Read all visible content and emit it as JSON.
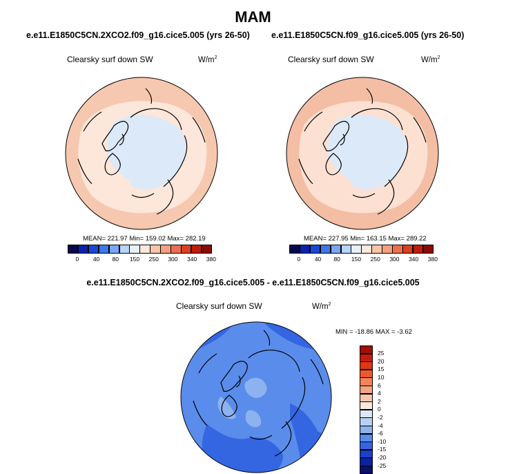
{
  "figure": {
    "season": "MAM",
    "diff_title": "e.e11.E1850C5CN.2XCO2.f09_g16.cice5.005 - e.e11.E1850C5CN.f09_g16.cice5.005"
  },
  "panels": [
    {
      "title": "e.e11.E1850C5CN.2XCO2.f09_g16.cice5.005 (yrs 26-50)",
      "variable": "Clearsky surf down SW",
      "units_base": "W/m",
      "units_exp": "2",
      "stats": "MEAN= 221.97  Min= 159.02  Max= 282.19",
      "mean": 221.97,
      "min": 159.02,
      "max": 282.19
    },
    {
      "title": "e.e11.E1850C5CN.f09_g16.cice5.005 (yrs 26-50)",
      "variable": "Clearsky surf down SW",
      "units_base": "W/m",
      "units_exp": "2",
      "stats": "MEAN= 227.95  Min= 163.15  Max= 289.22",
      "mean": 227.95,
      "min": 163.15,
      "max": 289.22
    }
  ],
  "diff_panel": {
    "variable": "Clearsky surf down SW",
    "units_base": "W/m",
    "units_exp": "2",
    "stats": "MIN = -18.86 MAX =  -3.62",
    "min": -18.86,
    "max": -3.62
  },
  "abs_colorbar": {
    "labels": [
      "0",
      "40",
      "80",
      "150",
      "250",
      "300",
      "340",
      "380"
    ],
    "colors": [
      "#08084e",
      "#0a22a8",
      "#1a48d6",
      "#3c78ea",
      "#78a8f2",
      "#b8d4f8",
      "#e8f0fc",
      "#fde8dc",
      "#f8c4a8",
      "#f4a080",
      "#ea7050",
      "#dc4020",
      "#c01c08",
      "#8c0a04"
    ]
  },
  "diff_colorbar": {
    "labels": [
      "25",
      "20",
      "15",
      "10",
      "6",
      "4",
      "2",
      "0",
      "-2",
      "-4",
      "-6",
      "-10",
      "-15",
      "-20",
      "-25"
    ],
    "colors": [
      "#a01004",
      "#c81c0a",
      "#e03612",
      "#f0582a",
      "#f4825a",
      "#f6a482",
      "#f8c6aa",
      "#fce8dc",
      "#dce8fa",
      "#b8d0f6",
      "#8cb2f0",
      "#5a8ceb",
      "#3466e2",
      "#1c40c8",
      "#0c22a0",
      "#08106a"
    ]
  }
}
